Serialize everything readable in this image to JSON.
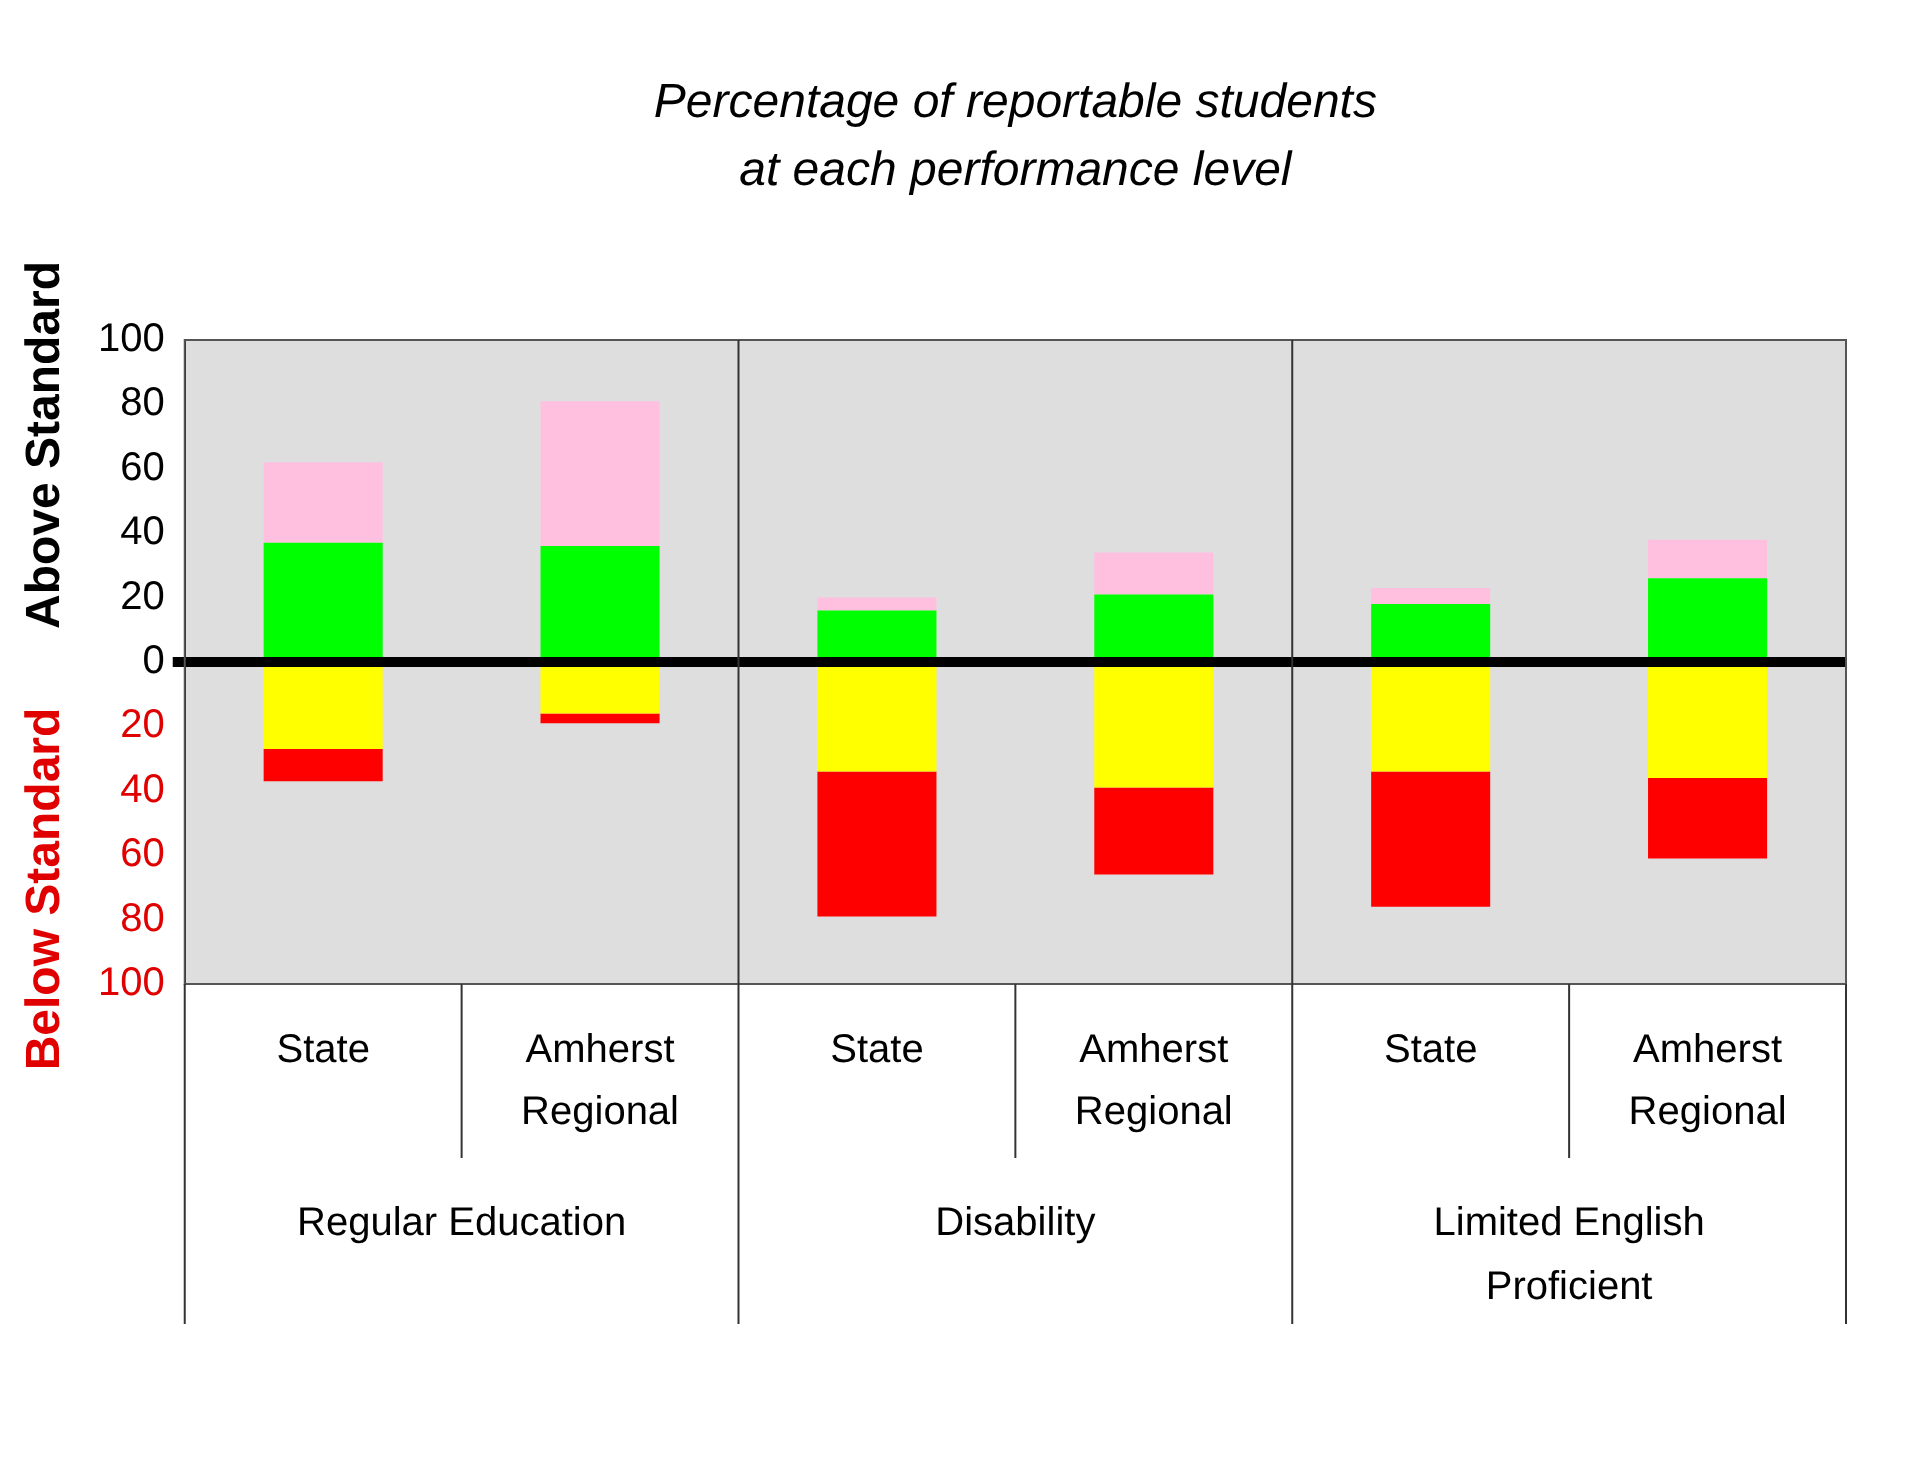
{
  "chart_data": {
    "type": "bar",
    "title": "Percentage of reportable students at each performance level",
    "ylabel": "Above Standard",
    "annotations": [
      "Below Standard",
      "Regular Education",
      "Disability",
      "Limited English Proficient"
    ],
    "categories": [
      "State",
      "Amherst Regional",
      "State",
      "Amherst Regional",
      "State",
      "Amherst Regional"
    ],
    "stacked": true,
    "legend": false,
    "grid": false,
    "ylim": [
      -100,
      100
    ],
    "yticks": [
      {
        "value": -100,
        "label": "100"
      },
      {
        "value": -80,
        "label": "80"
      },
      {
        "value": -60,
        "label": "60"
      },
      {
        "value": -40,
        "label": "40"
      },
      {
        "value": -20,
        "label": "20"
      },
      0,
      20,
      40,
      60,
      80,
      100
    ],
    "ref_lines": [
      {
        "axis": "y",
        "value": 0,
        "color": "#000000"
      }
    ],
    "series": [
      {
        "color": "#00ff00",
        "values": [
          37,
          36,
          16,
          21,
          18,
          26
        ]
      },
      {
        "color": "#ffc0e0",
        "values": [
          25,
          45,
          4,
          13,
          5,
          12
        ]
      },
      {
        "color": "#ffff00",
        "values": [
          -27,
          -16,
          -34,
          -39,
          -34,
          -36
        ]
      },
      {
        "color": "#ff0000",
        "values": [
          -10,
          -3,
          -45,
          -27,
          -42,
          -25
        ]
      }
    ]
  }
}
